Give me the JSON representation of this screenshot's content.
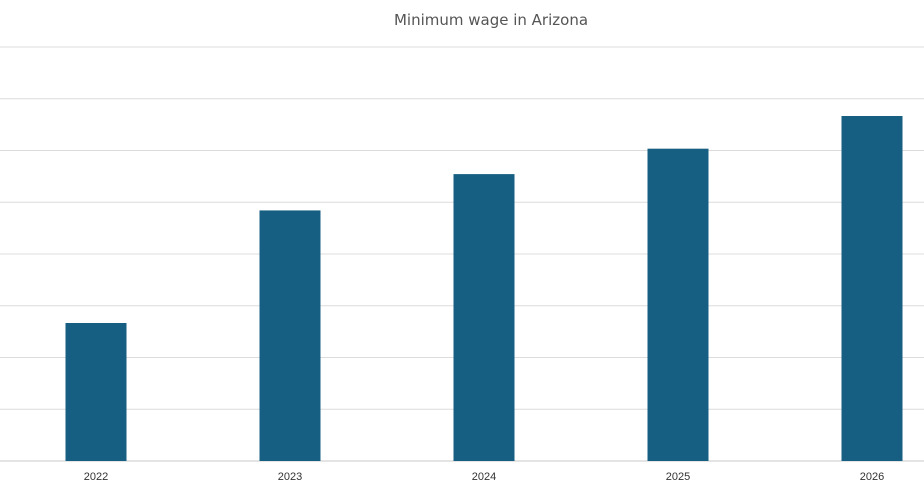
{
  "chart_data": {
    "type": "bar",
    "title": "Minimum wage in Arizona",
    "xlabel": "",
    "ylabel": "",
    "categories": [
      "2022",
      "2023",
      "2024",
      "2025",
      "2026"
    ],
    "values": [
      12.8,
      14.35,
      14.85,
      15.2,
      15.65
    ],
    "ylim": [
      10.9,
      16.6
    ],
    "grid": true,
    "y_tick_labels_visible": false,
    "bar_color": "#165f82"
  }
}
